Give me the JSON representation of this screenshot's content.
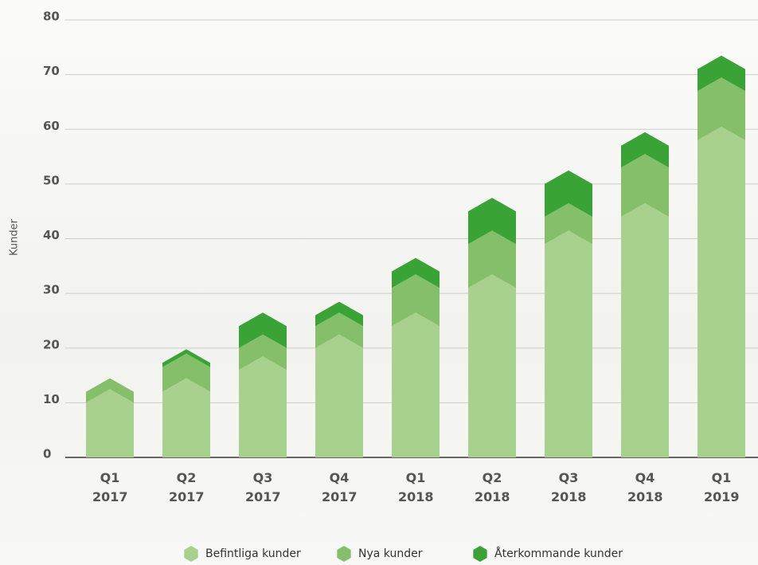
{
  "chart_data": {
    "type": "stacked-chevron-bar",
    "y_label": "Kunder",
    "categories": [
      "Q1 2017",
      "Q2 2017",
      "Q3 2017",
      "Q4 2017",
      "Q1 2018",
      "Q2 2018",
      "Q3 2018",
      "Q4 2018",
      "Q1 2019"
    ],
    "series": [
      {
        "name": "Befintliga kunder",
        "color": "#a9d18e",
        "values": [
          10,
          12,
          16,
          20,
          24,
          31,
          39,
          44,
          58
        ]
      },
      {
        "name": "Nya kunder",
        "color": "#86bf6a",
        "values": [
          2,
          4.5,
          4,
          4,
          7,
          8,
          5,
          9,
          9
        ]
      },
      {
        "name": "Återkommande kunder",
        "color": "#3aa336",
        "values": [
          0,
          0.8,
          4,
          2,
          3,
          6,
          6,
          4,
          4
        ]
      }
    ],
    "ylim": [
      0,
      80
    ],
    "yticks": [
      0,
      10,
      20,
      30,
      40,
      50,
      60,
      70,
      80
    ],
    "grid": true
  }
}
